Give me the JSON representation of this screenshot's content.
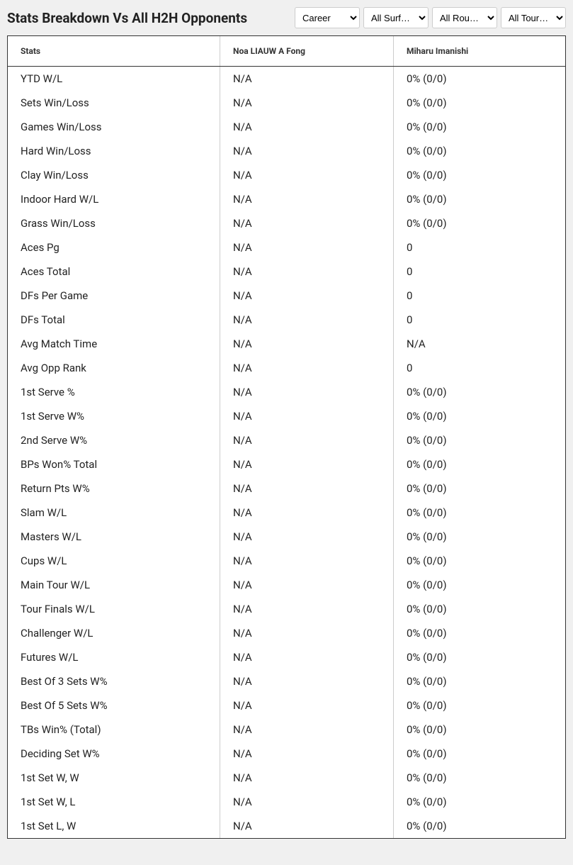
{
  "title": "Stats Breakdown Vs All H2H Opponents",
  "filters": {
    "period": "Career",
    "surface": "All Surf…",
    "round": "All Rou…",
    "tour": "All Tour…"
  },
  "columns": {
    "stats": "Stats",
    "player1": "Noa LIAUW A Fong",
    "player2": "Miharu Imanishi"
  },
  "rows": [
    {
      "stat": "YTD W/L",
      "p1": "N/A",
      "p2": "0% (0/0)"
    },
    {
      "stat": "Sets Win/Loss",
      "p1": "N/A",
      "p2": "0% (0/0)"
    },
    {
      "stat": "Games Win/Loss",
      "p1": "N/A",
      "p2": "0% (0/0)"
    },
    {
      "stat": "Hard Win/Loss",
      "p1": "N/A",
      "p2": "0% (0/0)"
    },
    {
      "stat": "Clay Win/Loss",
      "p1": "N/A",
      "p2": "0% (0/0)"
    },
    {
      "stat": "Indoor Hard W/L",
      "p1": "N/A",
      "p2": "0% (0/0)"
    },
    {
      "stat": "Grass Win/Loss",
      "p1": "N/A",
      "p2": "0% (0/0)"
    },
    {
      "stat": "Aces Pg",
      "p1": "N/A",
      "p2": "0"
    },
    {
      "stat": "Aces Total",
      "p1": "N/A",
      "p2": "0"
    },
    {
      "stat": "DFs Per Game",
      "p1": "N/A",
      "p2": "0"
    },
    {
      "stat": "DFs Total",
      "p1": "N/A",
      "p2": "0"
    },
    {
      "stat": "Avg Match Time",
      "p1": "N/A",
      "p2": "N/A"
    },
    {
      "stat": "Avg Opp Rank",
      "p1": "N/A",
      "p2": "0"
    },
    {
      "stat": "1st Serve %",
      "p1": "N/A",
      "p2": "0% (0/0)"
    },
    {
      "stat": "1st Serve W%",
      "p1": "N/A",
      "p2": "0% (0/0)"
    },
    {
      "stat": "2nd Serve W%",
      "p1": "N/A",
      "p2": "0% (0/0)"
    },
    {
      "stat": "BPs Won% Total",
      "p1": "N/A",
      "p2": "0% (0/0)"
    },
    {
      "stat": "Return Pts W%",
      "p1": "N/A",
      "p2": "0% (0/0)"
    },
    {
      "stat": "Slam W/L",
      "p1": "N/A",
      "p2": "0% (0/0)"
    },
    {
      "stat": "Masters W/L",
      "p1": "N/A",
      "p2": "0% (0/0)"
    },
    {
      "stat": "Cups W/L",
      "p1": "N/A",
      "p2": "0% (0/0)"
    },
    {
      "stat": "Main Tour W/L",
      "p1": "N/A",
      "p2": "0% (0/0)"
    },
    {
      "stat": "Tour Finals W/L",
      "p1": "N/A",
      "p2": "0% (0/0)"
    },
    {
      "stat": "Challenger W/L",
      "p1": "N/A",
      "p2": "0% (0/0)"
    },
    {
      "stat": "Futures W/L",
      "p1": "N/A",
      "p2": "0% (0/0)"
    },
    {
      "stat": "Best Of 3 Sets W%",
      "p1": "N/A",
      "p2": "0% (0/0)"
    },
    {
      "stat": "Best Of 5 Sets W%",
      "p1": "N/A",
      "p2": "0% (0/0)"
    },
    {
      "stat": "TBs Win% (Total)",
      "p1": "N/A",
      "p2": "0% (0/0)"
    },
    {
      "stat": "Deciding Set W%",
      "p1": "N/A",
      "p2": "0% (0/0)"
    },
    {
      "stat": "1st Set W, W",
      "p1": "N/A",
      "p2": "0% (0/0)"
    },
    {
      "stat": "1st Set W, L",
      "p1": "N/A",
      "p2": "0% (0/0)"
    },
    {
      "stat": "1st Set L, W",
      "p1": "N/A",
      "p2": "0% (0/0)"
    }
  ]
}
